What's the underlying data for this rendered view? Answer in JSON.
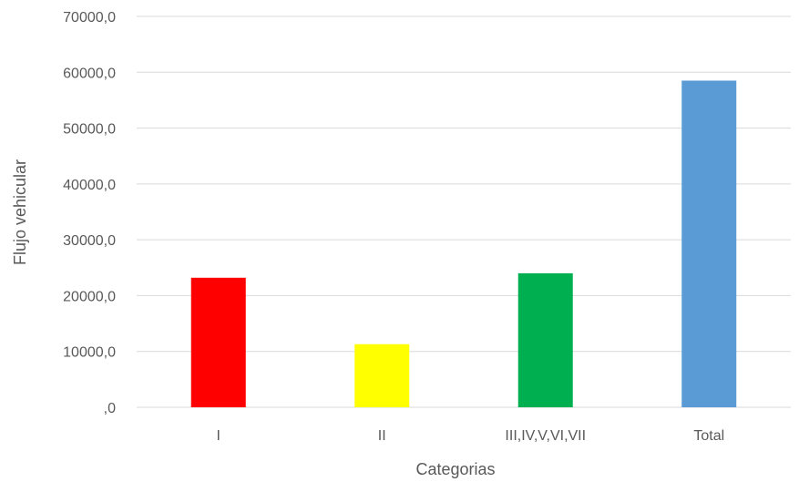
{
  "chart_data": {
    "type": "bar",
    "title": "",
    "xlabel": "Categorias",
    "ylabel": "Flujo vehicular",
    "categories": [
      "I",
      "II",
      "III,IV,V,VI,VII",
      "Total"
    ],
    "values": [
      23200,
      11300,
      24000,
      58500
    ],
    "colors": [
      "#ff0000",
      "#ffff00",
      "#00b050",
      "#5b9bd5"
    ],
    "ylim": [
      0,
      70000
    ],
    "yticks": [
      0,
      10000,
      20000,
      30000,
      40000,
      50000,
      60000,
      70000
    ],
    "ytick_labels": [
      ",0",
      "10000,0",
      "20000,0",
      "30000,0",
      "40000,0",
      "50000,0",
      "60000,0",
      "70000,0"
    ],
    "grid": true,
    "legend": "none"
  }
}
